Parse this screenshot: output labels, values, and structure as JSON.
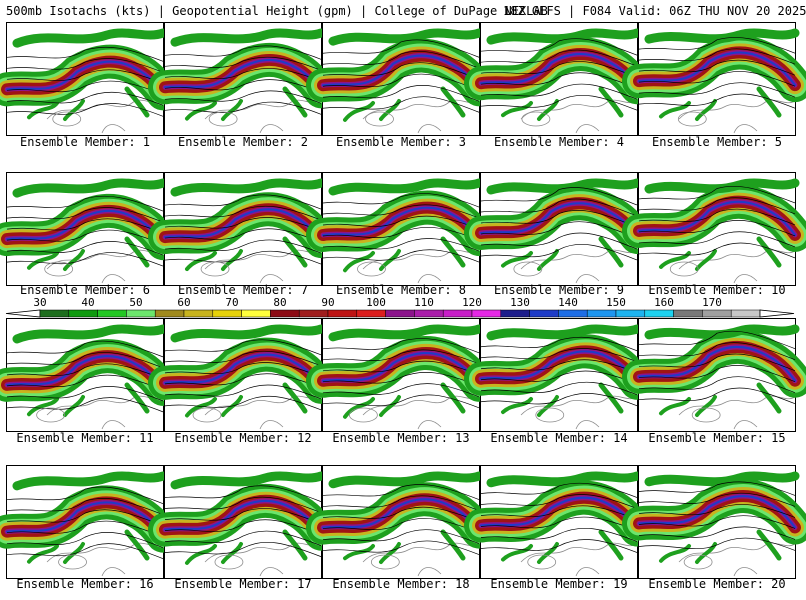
{
  "header": {
    "title_left": "500mb Isotachs (kts) | Geopotential Height (gpm) | College of DuPage NEXLAB",
    "title_right": "18Z GEFS | F084 Valid: 06Z THU NOV 20 2025"
  },
  "members": [
    {
      "number": 1,
      "label": "Ensemble Member: 1"
    },
    {
      "number": 2,
      "label": "Ensemble Member: 2"
    },
    {
      "number": 3,
      "label": "Ensemble Member: 3"
    },
    {
      "number": 4,
      "label": "Ensemble Member: 4"
    },
    {
      "number": 5,
      "label": "Ensemble Member: 5"
    },
    {
      "number": 6,
      "label": "Ensemble Member: 6"
    },
    {
      "number": 7,
      "label": "Ensemble Member: 7"
    },
    {
      "number": 8,
      "label": "Ensemble Member: 8"
    },
    {
      "number": 9,
      "label": "Ensemble Member: 9"
    },
    {
      "number": 10,
      "label": "Ensemble Member: 10"
    },
    {
      "number": 11,
      "label": "Ensemble Member: 11"
    },
    {
      "number": 12,
      "label": "Ensemble Member: 12"
    },
    {
      "number": 13,
      "label": "Ensemble Member: 13"
    },
    {
      "number": 14,
      "label": "Ensemble Member: 14"
    },
    {
      "number": 15,
      "label": "Ensemble Member: 15"
    },
    {
      "number": 16,
      "label": "Ensemble Member: 16"
    },
    {
      "number": 17,
      "label": "Ensemble Member: 17"
    },
    {
      "number": 18,
      "label": "Ensemble Member: 18"
    },
    {
      "number": 19,
      "label": "Ensemble Member: 19"
    },
    {
      "number": 20,
      "label": "Ensemble Member: 20"
    }
  ],
  "colorbar": {
    "ticks": [
      "30",
      "40",
      "50",
      "60",
      "70",
      "80",
      "90",
      "100",
      "110",
      "120",
      "130",
      "140",
      "150",
      "160",
      "170"
    ],
    "colors": [
      "#1e6e1e",
      "#0e9a0e",
      "#22c822",
      "#6ce66c",
      "#a08a1e",
      "#c8b41e",
      "#e6d20a",
      "#ffff3c",
      "#8c0a14",
      "#a01e1e",
      "#be1414",
      "#dc1e1e",
      "#8c148c",
      "#aa1eaa",
      "#c81ec8",
      "#e628e6",
      "#1e1e8c",
      "#1e3cc8",
      "#1e6ee6",
      "#1e96f0",
      "#1eb4f0",
      "#1ed2f0",
      "#787878",
      "#a0a0a0",
      "#c8c8c8"
    ]
  },
  "palette": {
    "jet_green": "#1ea01e",
    "jet_light_green": "#6ce66c",
    "jet_yellow": "#c8b41e",
    "jet_red": "#a01414",
    "jet_purple": "#8c148c",
    "jet_blue": "#1e3cc8",
    "contour": "#000000",
    "coast": "#8c8c8c"
  }
}
